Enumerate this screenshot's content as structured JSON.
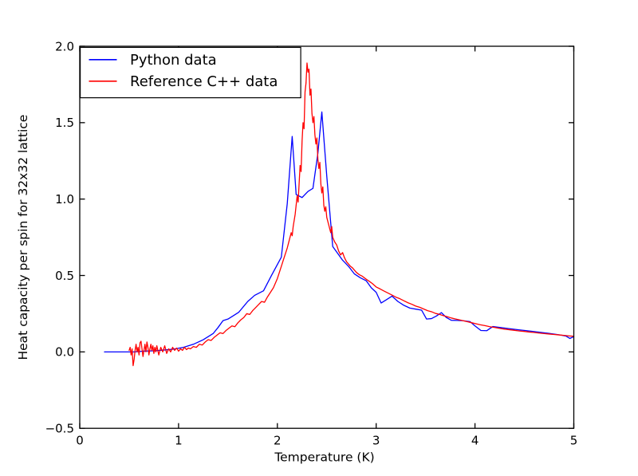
{
  "chart_data": {
    "type": "line",
    "title": "",
    "xlabel": "Temperature (K)",
    "ylabel": "Heat capacity per spin for 32x32 lattice",
    "xlim": [
      0,
      5
    ],
    "ylim": [
      -0.5,
      2.0
    ],
    "grid": false,
    "tick_style": "inward ticks on all four sides",
    "xticks": {
      "values": [
        0,
        1,
        2,
        3,
        4,
        5
      ],
      "labels": [
        "0",
        "1",
        "2",
        "3",
        "4",
        "5"
      ]
    },
    "yticks": {
      "values": [
        -0.5,
        0.0,
        0.5,
        1.0,
        1.5,
        2.0
      ],
      "labels": [
        "−0.5",
        "0.0",
        "0.5",
        "1.0",
        "1.5",
        "2.0"
      ]
    },
    "legend": {
      "location": "upper left",
      "border": true,
      "background": "#ffffff"
    },
    "axis_color": "#000000",
    "background_color": "#ffffff",
    "series": [
      {
        "name": "Python data",
        "color": "#0000ff",
        "points": [
          [
            0.25,
            0.0
          ],
          [
            0.35,
            0.0
          ],
          [
            0.45,
            0.0
          ],
          [
            0.55,
            0.0
          ],
          [
            0.65,
            0.005
          ],
          [
            0.75,
            0.007
          ],
          [
            0.85,
            0.012
          ],
          [
            0.95,
            0.018
          ],
          [
            1.05,
            0.03
          ],
          [
            1.15,
            0.05
          ],
          [
            1.25,
            0.08
          ],
          [
            1.35,
            0.12
          ],
          [
            1.4,
            0.16
          ],
          [
            1.45,
            0.205
          ],
          [
            1.5,
            0.215
          ],
          [
            1.55,
            0.235
          ],
          [
            1.61,
            0.26
          ],
          [
            1.7,
            0.33
          ],
          [
            1.77,
            0.37
          ],
          [
            1.86,
            0.4
          ],
          [
            1.94,
            0.5
          ],
          [
            2.04,
            0.62
          ],
          [
            2.1,
            0.97
          ],
          [
            2.15,
            1.41
          ],
          [
            2.19,
            1.03
          ],
          [
            2.25,
            1.01
          ],
          [
            2.31,
            1.05
          ],
          [
            2.36,
            1.07
          ],
          [
            2.41,
            1.3
          ],
          [
            2.45,
            1.57
          ],
          [
            2.5,
            1.15
          ],
          [
            2.56,
            0.69
          ],
          [
            2.61,
            0.645
          ],
          [
            2.66,
            0.6
          ],
          [
            2.72,
            0.56
          ],
          [
            2.78,
            0.51
          ],
          [
            2.84,
            0.485
          ],
          [
            2.9,
            0.465
          ],
          [
            2.95,
            0.42
          ],
          [
            3.0,
            0.39
          ],
          [
            3.05,
            0.32
          ],
          [
            3.1,
            0.34
          ],
          [
            3.16,
            0.365
          ],
          [
            3.22,
            0.33
          ],
          [
            3.28,
            0.305
          ],
          [
            3.34,
            0.287
          ],
          [
            3.4,
            0.28
          ],
          [
            3.46,
            0.273
          ],
          [
            3.51,
            0.215
          ],
          [
            3.56,
            0.218
          ],
          [
            3.61,
            0.235
          ],
          [
            3.66,
            0.257
          ],
          [
            3.71,
            0.225
          ],
          [
            3.76,
            0.207
          ],
          [
            3.82,
            0.206
          ],
          [
            3.88,
            0.204
          ],
          [
            3.95,
            0.198
          ],
          [
            4.0,
            0.17
          ],
          [
            4.06,
            0.14
          ],
          [
            4.12,
            0.139
          ],
          [
            4.18,
            0.166
          ],
          [
            4.25,
            0.16
          ],
          [
            4.35,
            0.152
          ],
          [
            4.45,
            0.144
          ],
          [
            4.55,
            0.137
          ],
          [
            4.65,
            0.129
          ],
          [
            4.75,
            0.121
          ],
          [
            4.85,
            0.112
          ],
          [
            4.92,
            0.104
          ],
          [
            4.96,
            0.088
          ],
          [
            5.0,
            0.1
          ]
        ]
      },
      {
        "name": "Reference C++ data",
        "color": "#ff0000",
        "points": [
          [
            0.5,
            0.01
          ],
          [
            0.51,
            0.03
          ],
          [
            0.52,
            -0.02
          ],
          [
            0.53,
            0.02
          ],
          [
            0.54,
            -0.09
          ],
          [
            0.55,
            -0.05
          ],
          [
            0.56,
            0.01
          ],
          [
            0.57,
            0.05
          ],
          [
            0.58,
            0.0
          ],
          [
            0.59,
            0.03
          ],
          [
            0.6,
            -0.02
          ],
          [
            0.61,
            0.06
          ],
          [
            0.62,
            0.07
          ],
          [
            0.63,
            0.02
          ],
          [
            0.64,
            -0.03
          ],
          [
            0.65,
            0.01
          ],
          [
            0.66,
            0.05
          ],
          [
            0.67,
            0.0
          ],
          [
            0.68,
            0.065
          ],
          [
            0.69,
            0.03
          ],
          [
            0.7,
            -0.02
          ],
          [
            0.71,
            0.02
          ],
          [
            0.72,
            0.05
          ],
          [
            0.73,
            0.01
          ],
          [
            0.74,
            0.04
          ],
          [
            0.75,
            -0.01
          ],
          [
            0.76,
            0.03
          ],
          [
            0.77,
            0.0
          ],
          [
            0.78,
            0.04
          ],
          [
            0.79,
            0.01
          ],
          [
            0.8,
            -0.02
          ],
          [
            0.82,
            0.03
          ],
          [
            0.84,
            0.0
          ],
          [
            0.86,
            0.04
          ],
          [
            0.88,
            -0.01
          ],
          [
            0.9,
            0.02
          ],
          [
            0.92,
            0.0
          ],
          [
            0.94,
            0.03
          ],
          [
            0.96,
            0.01
          ],
          [
            0.98,
            0.025
          ],
          [
            1.0,
            0.005
          ],
          [
            1.02,
            0.02
          ],
          [
            1.04,
            0.01
          ],
          [
            1.06,
            0.03
          ],
          [
            1.08,
            0.015
          ],
          [
            1.1,
            0.025
          ],
          [
            1.12,
            0.02
          ],
          [
            1.15,
            0.035
          ],
          [
            1.18,
            0.03
          ],
          [
            1.21,
            0.05
          ],
          [
            1.24,
            0.045
          ],
          [
            1.27,
            0.065
          ],
          [
            1.3,
            0.08
          ],
          [
            1.33,
            0.075
          ],
          [
            1.36,
            0.095
          ],
          [
            1.39,
            0.11
          ],
          [
            1.42,
            0.125
          ],
          [
            1.45,
            0.12
          ],
          [
            1.48,
            0.14
          ],
          [
            1.51,
            0.155
          ],
          [
            1.54,
            0.17
          ],
          [
            1.57,
            0.165
          ],
          [
            1.6,
            0.19
          ],
          [
            1.63,
            0.21
          ],
          [
            1.66,
            0.225
          ],
          [
            1.69,
            0.25
          ],
          [
            1.72,
            0.245
          ],
          [
            1.75,
            0.27
          ],
          [
            1.78,
            0.29
          ],
          [
            1.81,
            0.31
          ],
          [
            1.84,
            0.33
          ],
          [
            1.87,
            0.325
          ],
          [
            1.9,
            0.36
          ],
          [
            1.93,
            0.39
          ],
          [
            1.96,
            0.42
          ],
          [
            1.98,
            0.45
          ],
          [
            2.0,
            0.48
          ],
          [
            2.02,
            0.52
          ],
          [
            2.04,
            0.56
          ],
          [
            2.06,
            0.6
          ],
          [
            2.08,
            0.64
          ],
          [
            2.1,
            0.68
          ],
          [
            2.12,
            0.73
          ],
          [
            2.14,
            0.78
          ],
          [
            2.15,
            0.76
          ],
          [
            2.16,
            0.82
          ],
          [
            2.18,
            0.9
          ],
          [
            2.2,
            1.02
          ],
          [
            2.21,
            0.98
          ],
          [
            2.22,
            1.1
          ],
          [
            2.23,
            1.22
          ],
          [
            2.24,
            1.18
          ],
          [
            2.25,
            1.38
          ],
          [
            2.26,
            1.5
          ],
          [
            2.27,
            1.46
          ],
          [
            2.28,
            1.7
          ],
          [
            2.29,
            1.76
          ],
          [
            2.3,
            1.89
          ],
          [
            2.31,
            1.83
          ],
          [
            2.32,
            1.85
          ],
          [
            2.33,
            1.68
          ],
          [
            2.34,
            1.72
          ],
          [
            2.35,
            1.56
          ],
          [
            2.36,
            1.5
          ],
          [
            2.37,
            1.54
          ],
          [
            2.38,
            1.42
          ],
          [
            2.39,
            1.36
          ],
          [
            2.4,
            1.4
          ],
          [
            2.41,
            1.26
          ],
          [
            2.42,
            1.2
          ],
          [
            2.43,
            1.24
          ],
          [
            2.44,
            1.1
          ],
          [
            2.45,
            1.04
          ],
          [
            2.46,
            1.08
          ],
          [
            2.47,
            0.96
          ],
          [
            2.48,
            0.92
          ],
          [
            2.49,
            0.95
          ],
          [
            2.5,
            0.88
          ],
          [
            2.52,
            0.83
          ],
          [
            2.54,
            0.78
          ],
          [
            2.55,
            0.82
          ],
          [
            2.56,
            0.75
          ],
          [
            2.58,
            0.72
          ],
          [
            2.6,
            0.7
          ],
          [
            2.62,
            0.66
          ],
          [
            2.64,
            0.635
          ],
          [
            2.66,
            0.65
          ],
          [
            2.68,
            0.615
          ],
          [
            2.7,
            0.59
          ],
          [
            2.72,
            0.575
          ],
          [
            2.74,
            0.56
          ],
          [
            2.76,
            0.55
          ],
          [
            2.78,
            0.535
          ],
          [
            2.8,
            0.52
          ],
          [
            2.83,
            0.505
          ],
          [
            2.86,
            0.495
          ],
          [
            2.9,
            0.475
          ],
          [
            2.93,
            0.462
          ],
          [
            2.96,
            0.448
          ],
          [
            3.0,
            0.425
          ],
          [
            3.04,
            0.412
          ],
          [
            3.08,
            0.398
          ],
          [
            3.12,
            0.385
          ],
          [
            3.16,
            0.372
          ],
          [
            3.2,
            0.358
          ],
          [
            3.24,
            0.348
          ],
          [
            3.28,
            0.335
          ],
          [
            3.32,
            0.322
          ],
          [
            3.36,
            0.312
          ],
          [
            3.4,
            0.3
          ],
          [
            3.44,
            0.292
          ],
          [
            3.48,
            0.281
          ],
          [
            3.52,
            0.27
          ],
          [
            3.56,
            0.263
          ],
          [
            3.6,
            0.252
          ],
          [
            3.64,
            0.246
          ],
          [
            3.68,
            0.237
          ],
          [
            3.72,
            0.23
          ],
          [
            3.76,
            0.222
          ],
          [
            3.8,
            0.216
          ],
          [
            3.84,
            0.21
          ],
          [
            3.88,
            0.204
          ],
          [
            3.92,
            0.198
          ],
          [
            3.96,
            0.192
          ],
          [
            4.0,
            0.186
          ],
          [
            4.05,
            0.178
          ],
          [
            4.1,
            0.172
          ],
          [
            4.15,
            0.165
          ],
          [
            4.2,
            0.16
          ],
          [
            4.25,
            0.154
          ],
          [
            4.3,
            0.149
          ],
          [
            4.35,
            0.145
          ],
          [
            4.4,
            0.141
          ],
          [
            4.45,
            0.137
          ],
          [
            4.5,
            0.134
          ],
          [
            4.55,
            0.13
          ],
          [
            4.6,
            0.127
          ],
          [
            4.65,
            0.123
          ],
          [
            4.7,
            0.12
          ],
          [
            4.75,
            0.117
          ],
          [
            4.8,
            0.114
          ],
          [
            4.85,
            0.111
          ],
          [
            4.9,
            0.108
          ],
          [
            4.95,
            0.105
          ],
          [
            5.0,
            0.102
          ]
        ]
      }
    ]
  }
}
